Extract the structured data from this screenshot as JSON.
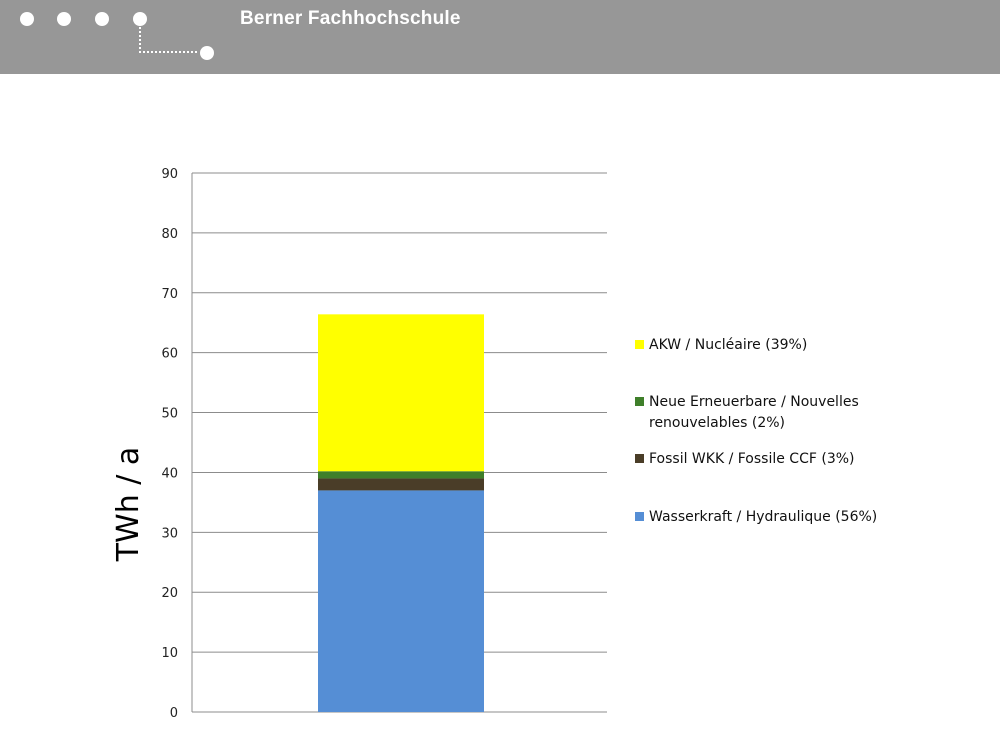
{
  "header": {
    "title": "Berner Fachhochschule",
    "dots": [
      "nav-dot-1",
      "nav-dot-2",
      "nav-dot-3",
      "nav-dot-4",
      "nav-dot-5"
    ]
  },
  "chart_data": {
    "type": "bar",
    "stacked": true,
    "categories": [
      ""
    ],
    "series": [
      {
        "name": "Wasserkraft / Hydraulique (56%)",
        "values": [
          37.0
        ],
        "color": "#558ED5"
      },
      {
        "name": "Fossil WKK / Fossile CCF (3%)",
        "values": [
          2.0
        ],
        "color": "#4A3D28"
      },
      {
        "name": "Neue Erneuerbare  / Nouvelles renouvelables (2%)",
        "values": [
          1.2
        ],
        "color": "#3F7F2A"
      },
      {
        "name": "AKW / Nucléaire (39%)",
        "values": [
          26.2
        ],
        "color": "#FFFF00"
      }
    ],
    "legend_order": [
      3,
      2,
      1,
      0
    ],
    "ylabel": "TWh / a",
    "xlabel": "",
    "ylim": [
      0,
      90
    ],
    "yticks": [
      0,
      10,
      20,
      30,
      40,
      50,
      60,
      70,
      80,
      90
    ],
    "grid": true,
    "legend_position": "right"
  }
}
